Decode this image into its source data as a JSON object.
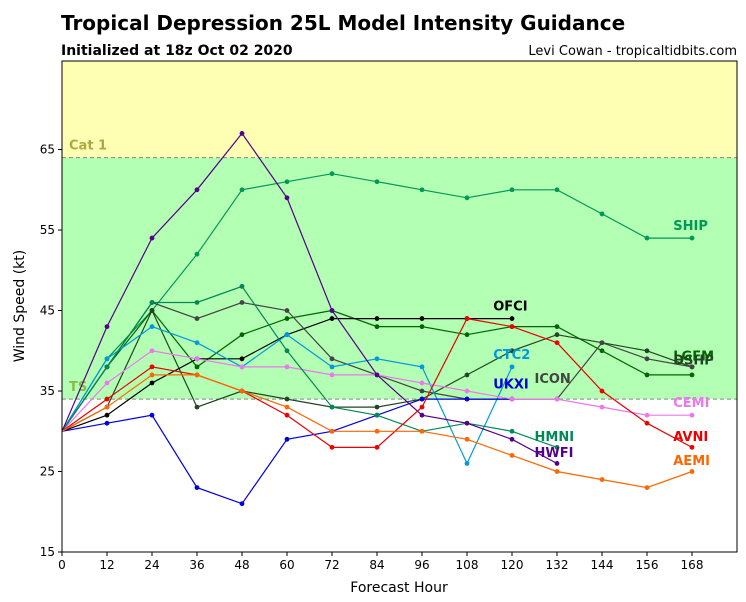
{
  "chart_data": {
    "type": "line",
    "title": "Tropical Depression 25L Model Intensity Guidance",
    "subtitle": "Initialized at 18z Oct 02 2020",
    "credit": "Levi Cowan - tropicaltidbits.com",
    "xlabel": "Forecast Hour",
    "ylabel": "Wind Speed (kt)",
    "xlim": [
      0,
      180
    ],
    "ylim": [
      15,
      76
    ],
    "x_ticks": [
      0,
      12,
      24,
      36,
      48,
      60,
      72,
      84,
      96,
      108,
      120,
      132,
      144,
      156,
      168
    ],
    "y_ticks": [
      15,
      25,
      35,
      45,
      55,
      65
    ],
    "bands": [
      {
        "label": "TS",
        "from": 34,
        "to": 64,
        "color": "#b3ffb3",
        "label_color": "#88bb44"
      },
      {
        "label": "Cat 1",
        "from": 64,
        "to": 76,
        "color": "#ffffb3",
        "label_color": "#aaaa44"
      }
    ],
    "series": [
      {
        "name": "SHIP",
        "color": "#009955",
        "x": [
          0,
          12,
          24,
          36,
          48,
          60,
          72,
          84,
          96,
          108,
          120,
          132,
          144,
          156,
          168
        ],
        "y": [
          30,
          39,
          45,
          52,
          60,
          61,
          62,
          61,
          60,
          59,
          60,
          60,
          57,
          54,
          54
        ]
      },
      {
        "name": "LGEM",
        "color": "#006600",
        "x": [
          0,
          12,
          24,
          36,
          48,
          60,
          72,
          84,
          96,
          108,
          120,
          132,
          144,
          156,
          168
        ],
        "y": [
          30,
          38,
          45,
          38,
          42,
          44,
          45,
          43,
          43,
          42,
          43,
          43,
          40,
          37,
          37
        ]
      },
      {
        "name": "DSHP",
        "color": "#224422",
        "x": [
          0,
          12,
          24,
          36,
          48,
          60,
          72,
          84,
          96,
          108,
          120,
          132,
          144,
          156,
          168
        ],
        "y": [
          30,
          33,
          45,
          33,
          35,
          34,
          33,
          33,
          34,
          37,
          40,
          42,
          41,
          40,
          38
        ]
      },
      {
        "name": "OFCI",
        "color": "#000000",
        "x": [
          0,
          12,
          24,
          36,
          48,
          60,
          72,
          84,
          96,
          108,
          120
        ],
        "y": [
          30,
          32,
          36,
          39,
          39,
          42,
          44,
          44,
          44,
          44,
          44
        ]
      },
      {
        "name": "ICON",
        "color": "#444444",
        "x": [
          0,
          12,
          24,
          36,
          48,
          60,
          72,
          84,
          96,
          108,
          120,
          132,
          144,
          156,
          168
        ],
        "y": [
          30,
          38,
          46,
          44,
          46,
          45,
          39,
          37,
          35,
          34,
          34,
          34,
          41,
          39,
          38
        ]
      },
      {
        "name": "CTC2",
        "color": "#0099dd",
        "x": [
          0,
          12,
          24,
          36,
          48,
          60,
          72,
          84,
          96,
          108,
          120
        ],
        "y": [
          30,
          39,
          43,
          41,
          38,
          42,
          38,
          39,
          38,
          26,
          38
        ]
      },
      {
        "name": "UKXI",
        "color": "#0000dd",
        "x": [
          0,
          12,
          24,
          36,
          48,
          60,
          72,
          84,
          96,
          108,
          120
        ],
        "y": [
          30,
          31,
          32,
          23,
          21,
          29,
          30,
          32,
          34,
          34,
          34
        ]
      },
      {
        "name": "CEMI",
        "color": "#ee77ee",
        "x": [
          0,
          12,
          24,
          36,
          48,
          60,
          72,
          84,
          96,
          108,
          120,
          132,
          144,
          156,
          168
        ],
        "y": [
          30,
          36,
          40,
          39,
          38,
          38,
          37,
          37,
          36,
          35,
          34,
          34,
          33,
          32,
          32
        ]
      },
      {
        "name": "HMNI",
        "color": "#008855",
        "x": [
          0,
          12,
          24,
          36,
          48,
          60,
          72,
          84,
          96,
          108,
          120,
          132
        ],
        "y": [
          30,
          38,
          46,
          46,
          48,
          40,
          33,
          32,
          30,
          31,
          30,
          28
        ]
      },
      {
        "name": "HWFI",
        "color": "#550088",
        "x": [
          0,
          12,
          24,
          36,
          48,
          60,
          72,
          84,
          96,
          108,
          120,
          132
        ],
        "y": [
          30,
          43,
          54,
          60,
          67,
          59,
          45,
          37,
          32,
          31,
          29,
          26
        ]
      },
      {
        "name": "AVNI",
        "color": "#ee0000",
        "x": [
          0,
          12,
          24,
          36,
          48,
          60,
          72,
          84,
          96,
          108,
          120,
          132,
          144,
          156,
          168
        ],
        "y": [
          30,
          34,
          38,
          37,
          35,
          32,
          28,
          28,
          33,
          44,
          43,
          41,
          35,
          31,
          28
        ]
      },
      {
        "name": "AEMI",
        "color": "#ff6600",
        "x": [
          0,
          12,
          24,
          36,
          48,
          60,
          72,
          84,
          96,
          108,
          120,
          132,
          144,
          156,
          168
        ],
        "y": [
          30,
          33,
          37,
          37,
          35,
          33,
          30,
          30,
          30,
          29,
          27,
          25,
          24,
          23,
          25
        ]
      }
    ],
    "series_labels": [
      {
        "name": "SHIP",
        "color": "#009955",
        "x": 163,
        "y": 55
      },
      {
        "name": "LGEM",
        "color": "#006600",
        "x": 163,
        "y": 38.8
      },
      {
        "name": "DSHP",
        "color": "#224422",
        "x": 163,
        "y": 38.3
      },
      {
        "name": "OFCI",
        "color": "#000000",
        "x": 115,
        "y": 45
      },
      {
        "name": "ICON",
        "color": "#444444",
        "x": 126,
        "y": 36
      },
      {
        "name": "CTC2",
        "color": "#0099dd",
        "x": 115,
        "y": 39
      },
      {
        "name": "UKXI",
        "color": "#0000dd",
        "x": 115,
        "y": 35.3
      },
      {
        "name": "CEMI",
        "color": "#ee77ee",
        "x": 163,
        "y": 33
      },
      {
        "name": "HMNI",
        "color": "#008855",
        "x": 126,
        "y": 28.8
      },
      {
        "name": "HWFI",
        "color": "#550088",
        "x": 126,
        "y": 26.8
      },
      {
        "name": "AVNI",
        "color": "#ee0000",
        "x": 163,
        "y": 28.8
      },
      {
        "name": "AEMI",
        "color": "#ff6600",
        "x": 163,
        "y": 25.8
      }
    ]
  }
}
